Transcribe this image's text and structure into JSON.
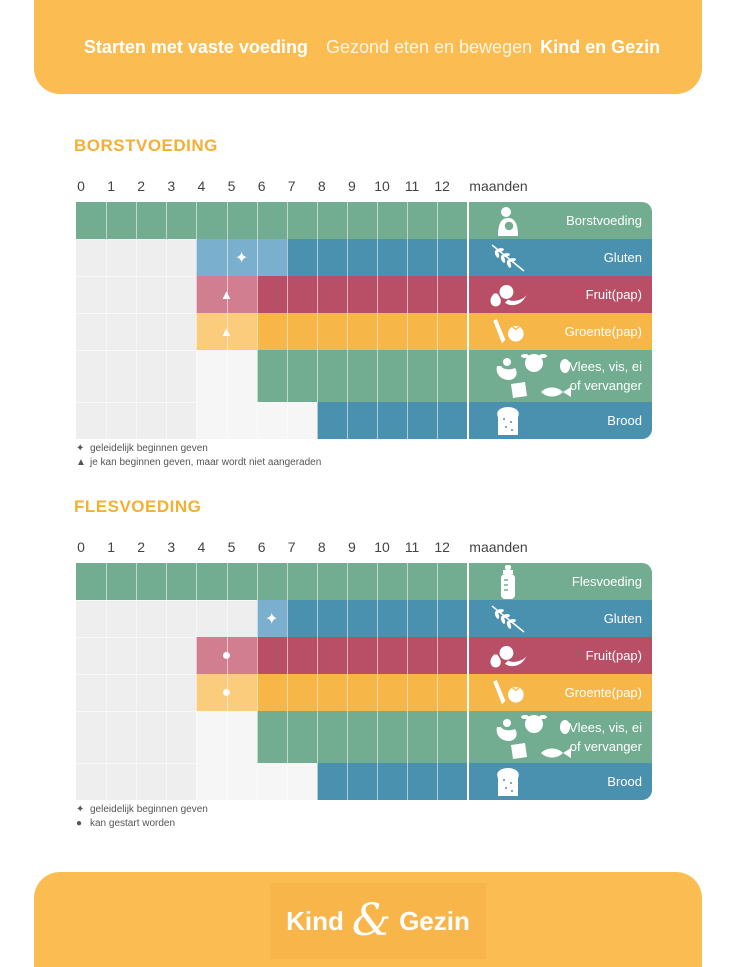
{
  "header": {
    "title": "Starten met vaste voeding",
    "subtitle": "Gezond eten en bewegen",
    "brand": "Kind en Gezin"
  },
  "months": [
    "0",
    "1",
    "2",
    "3",
    "4",
    "5",
    "6",
    "7",
    "8",
    "9",
    "10",
    "11",
    "12"
  ],
  "months_unit": "maanden",
  "colors": {
    "teal": "#72ad91",
    "blue": "#4a91b0",
    "blue_light": "#7ab0cd",
    "red": "#b84f67",
    "red_light": "#d17f90",
    "yellow": "#f7b748",
    "yellow_light": "#fbcc7c",
    "empty": "#eeeeee",
    "empty_light": "#f6f6f6",
    "accent": "#f3b035"
  },
  "sections": [
    {
      "title": "BORSTVOEDING",
      "rows": [
        {
          "label": "Borstvoeding",
          "icon": "breastfeeding-icon",
          "color": "teal",
          "start": 0,
          "light_until": 0,
          "marker": ""
        },
        {
          "label": "Gluten",
          "icon": "wheat-icon",
          "color": "blue",
          "start": 7,
          "light_until": 4,
          "marker": "✦"
        },
        {
          "label": "Fruit(pap)",
          "icon": "fruit-icon",
          "color": "red",
          "start": 6,
          "light_until": 4,
          "marker": "▲"
        },
        {
          "label": "Groente(pap)",
          "icon": "vegetable-icon",
          "color": "yellow",
          "start": 6,
          "light_until": 4,
          "marker": "▲"
        },
        {
          "label": "Vlees, vis, ei\nof vervanger",
          "icon": "meat-fish-egg-icon",
          "color": "teal",
          "start": 6,
          "light_until": 4,
          "marker": ""
        },
        {
          "label": "Brood",
          "icon": "bread-icon",
          "color": "blue",
          "start": 8,
          "light_until": 4,
          "marker": ""
        }
      ],
      "legend": [
        {
          "symbol": "✦",
          "text": "geleidelijk beginnen geven"
        },
        {
          "symbol": "▲",
          "text": "je kan beginnen geven, maar wordt niet aangeraden"
        }
      ]
    },
    {
      "title": "FLESVOEDING",
      "rows": [
        {
          "label": "Flesvoeding",
          "icon": "bottle-icon",
          "color": "teal",
          "start": 0,
          "light_until": 0,
          "marker": ""
        },
        {
          "label": "Gluten",
          "icon": "wheat-icon",
          "color": "blue",
          "start": 7,
          "light_until": 6,
          "marker": "✦"
        },
        {
          "label": "Fruit(pap)",
          "icon": "fruit-icon",
          "color": "red",
          "start": 6,
          "light_until": 4,
          "marker": "●"
        },
        {
          "label": "Groente(pap)",
          "icon": "vegetable-icon",
          "color": "yellow",
          "start": 6,
          "light_until": 4,
          "marker": "●"
        },
        {
          "label": "Vlees, vis, ei\nof vervanger",
          "icon": "meat-fish-egg-icon",
          "color": "teal",
          "start": 6,
          "light_until": 4,
          "marker": ""
        },
        {
          "label": "Brood",
          "icon": "bread-icon",
          "color": "blue",
          "start": 8,
          "light_until": 4,
          "marker": ""
        }
      ],
      "legend": [
        {
          "symbol": "✦",
          "text": "geleidelijk beginnen geven"
        },
        {
          "symbol": "●",
          "text": "kan gestart worden"
        }
      ]
    }
  ],
  "footer": {
    "logo_left": "Kind",
    "logo_amp": "&",
    "logo_right": "Gezin"
  }
}
